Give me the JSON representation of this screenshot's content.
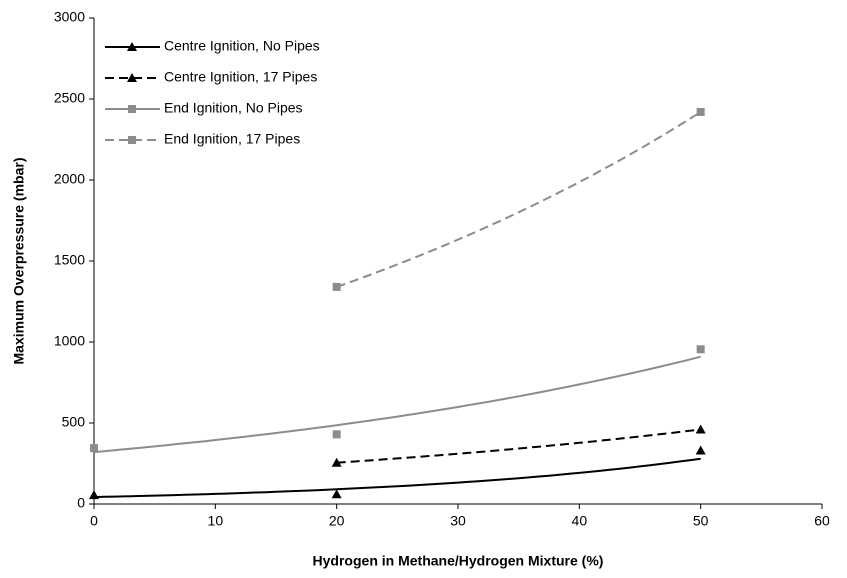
{
  "chart_data": {
    "type": "scatter",
    "trendline": "exponential",
    "xlabel": "Hydrogen in Methane/Hydrogen Mixture (%)",
    "ylabel": "Maximum Overpressure (mbar)",
    "xlim": [
      0,
      60
    ],
    "xticks": [
      0,
      10,
      20,
      30,
      40,
      50,
      60
    ],
    "ylim": [
      0,
      3000
    ],
    "yticks": [
      0,
      500,
      1000,
      1500,
      2000,
      2500,
      3000
    ],
    "grid": false,
    "legend": "top-left",
    "series": [
      {
        "name": "Centre Ignition, No Pipes",
        "color": "#000000",
        "dash": false,
        "marker": "triangle",
        "x": [
          0,
          20,
          50
        ],
        "values": [
          55,
          60,
          330
        ]
      },
      {
        "name": "Centre Ignition, 17 Pipes",
        "color": "#000000",
        "dash": true,
        "marker": "triangle",
        "x": [
          20,
          50
        ],
        "values": [
          255,
          460
        ]
      },
      {
        "name": "End Ignition, No Pipes",
        "color": "#8c8c8c",
        "dash": false,
        "marker": "square",
        "x": [
          0,
          20,
          50
        ],
        "values": [
          345,
          430,
          955
        ]
      },
      {
        "name": "End Ignition, 17 Pipes",
        "color": "#8c8c8c",
        "dash": true,
        "marker": "square",
        "x": [
          20,
          50
        ],
        "values": [
          1340,
          2420
        ]
      }
    ]
  }
}
